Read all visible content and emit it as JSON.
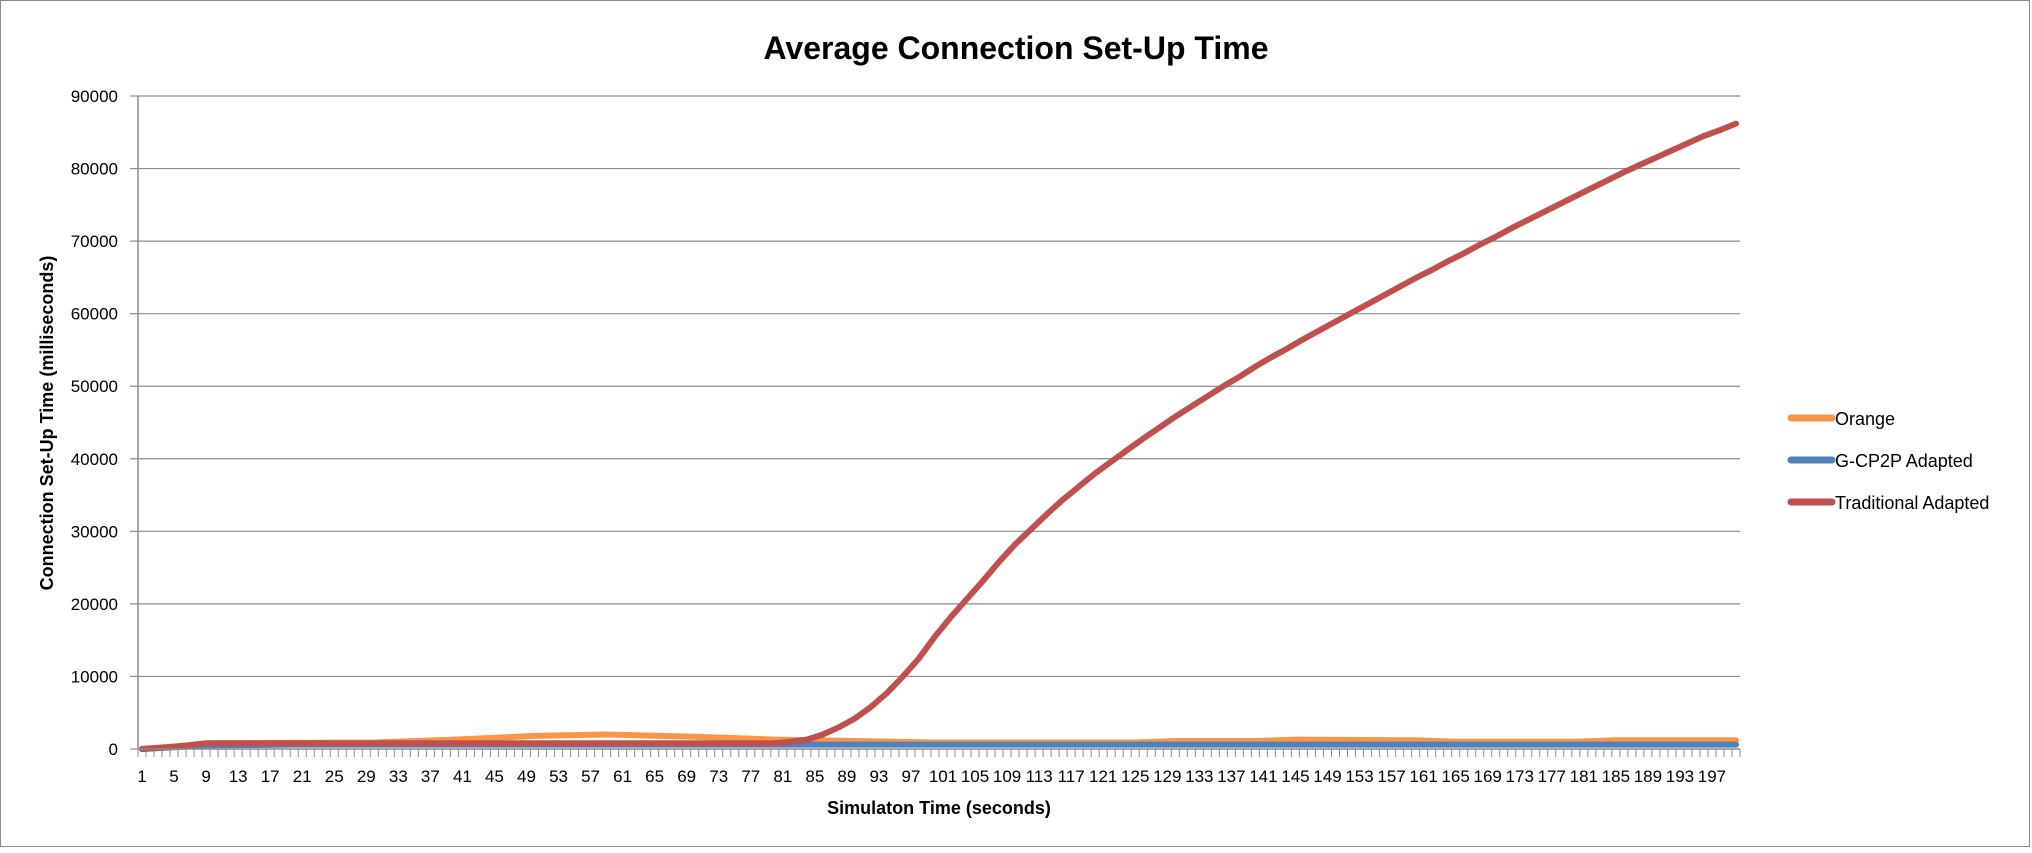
{
  "chart_data": {
    "type": "line",
    "title": "Average Connection Set-Up Time",
    "xlabel": "Simulaton Time (seconds)",
    "ylabel": "Connection Set-Up Time (milliseconds)",
    "ylim": [
      0,
      90000
    ],
    "yticks": [
      0,
      10000,
      20000,
      30000,
      40000,
      50000,
      60000,
      70000,
      80000,
      90000
    ],
    "xlim": [
      1,
      200
    ],
    "xtick_labels": [
      "1",
      "5",
      "9",
      "13",
      "17",
      "21",
      "25",
      "29",
      "33",
      "37",
      "41",
      "45",
      "49",
      "53",
      "57",
      "61",
      "65",
      "69",
      "73",
      "77",
      "81",
      "85",
      "89",
      "93",
      "97",
      "101",
      "105",
      "109",
      "113",
      "117",
      "121",
      "125",
      "129",
      "133",
      "137",
      "141",
      "145",
      "149",
      "153",
      "157",
      "161",
      "165",
      "169",
      "173",
      "177",
      "181",
      "185",
      "189",
      "193",
      "197"
    ],
    "grid": "horizontal",
    "legend_position": "right",
    "series": [
      {
        "name": "Orange",
        "color": "#F79646",
        "points": [
          [
            1,
            0
          ],
          [
            8,
            600
          ],
          [
            10,
            800
          ],
          [
            30,
            900
          ],
          [
            40,
            1300
          ],
          [
            50,
            1800
          ],
          [
            59,
            2000
          ],
          [
            70,
            1700
          ],
          [
            80,
            1300
          ],
          [
            90,
            1100
          ],
          [
            100,
            900
          ],
          [
            125,
            900
          ],
          [
            130,
            1100
          ],
          [
            140,
            1100
          ],
          [
            145,
            1300
          ],
          [
            160,
            1200
          ],
          [
            165,
            1000
          ],
          [
            180,
            1000
          ],
          [
            185,
            1200
          ],
          [
            200,
            1200
          ]
        ]
      },
      {
        "name": "G-CP2P Adapted",
        "color": "#4F81BD",
        "points": [
          [
            1,
            0
          ],
          [
            6,
            300
          ],
          [
            9,
            500
          ],
          [
            20,
            600
          ],
          [
            40,
            600
          ],
          [
            80,
            600
          ],
          [
            120,
            600
          ],
          [
            160,
            600
          ],
          [
            200,
            600
          ]
        ]
      },
      {
        "name": "Traditional Adapted",
        "color": "#C0504D",
        "points": [
          [
            1,
            0
          ],
          [
            5,
            300
          ],
          [
            9,
            800
          ],
          [
            80,
            800
          ],
          [
            82,
            1000
          ],
          [
            84,
            1300
          ],
          [
            86,
            2000
          ],
          [
            88,
            3000
          ],
          [
            90,
            4200
          ],
          [
            92,
            5800
          ],
          [
            94,
            7700
          ],
          [
            96,
            10000
          ],
          [
            98,
            12500
          ],
          [
            100,
            15500
          ],
          [
            102,
            18200
          ],
          [
            104,
            20700
          ],
          [
            106,
            23200
          ],
          [
            108,
            25800
          ],
          [
            110,
            28200
          ],
          [
            112,
            30300
          ],
          [
            114,
            32400
          ],
          [
            116,
            34400
          ],
          [
            118,
            36200
          ],
          [
            120,
            38000
          ],
          [
            122,
            39600
          ],
          [
            124,
            41200
          ],
          [
            126,
            42800
          ],
          [
            128,
            44300
          ],
          [
            130,
            45800
          ],
          [
            132,
            47200
          ],
          [
            134,
            48600
          ],
          [
            136,
            50000
          ],
          [
            138,
            51300
          ],
          [
            140,
            52700
          ],
          [
            142,
            54000
          ],
          [
            144,
            55200
          ],
          [
            146,
            56500
          ],
          [
            148,
            57700
          ],
          [
            150,
            58900
          ],
          [
            152,
            60100
          ],
          [
            154,
            61300
          ],
          [
            156,
            62500
          ],
          [
            158,
            63700
          ],
          [
            160,
            64900
          ],
          [
            162,
            66000
          ],
          [
            164,
            67200
          ],
          [
            166,
            68300
          ],
          [
            168,
            69500
          ],
          [
            170,
            70600
          ],
          [
            172,
            71800
          ],
          [
            174,
            72900
          ],
          [
            176,
            74000
          ],
          [
            178,
            75100
          ],
          [
            180,
            76200
          ],
          [
            182,
            77300
          ],
          [
            184,
            78400
          ],
          [
            186,
            79500
          ],
          [
            188,
            80500
          ],
          [
            190,
            81500
          ],
          [
            192,
            82500
          ],
          [
            194,
            83500
          ],
          [
            196,
            84500
          ],
          [
            198,
            85300
          ],
          [
            200,
            86200
          ]
        ]
      }
    ]
  }
}
